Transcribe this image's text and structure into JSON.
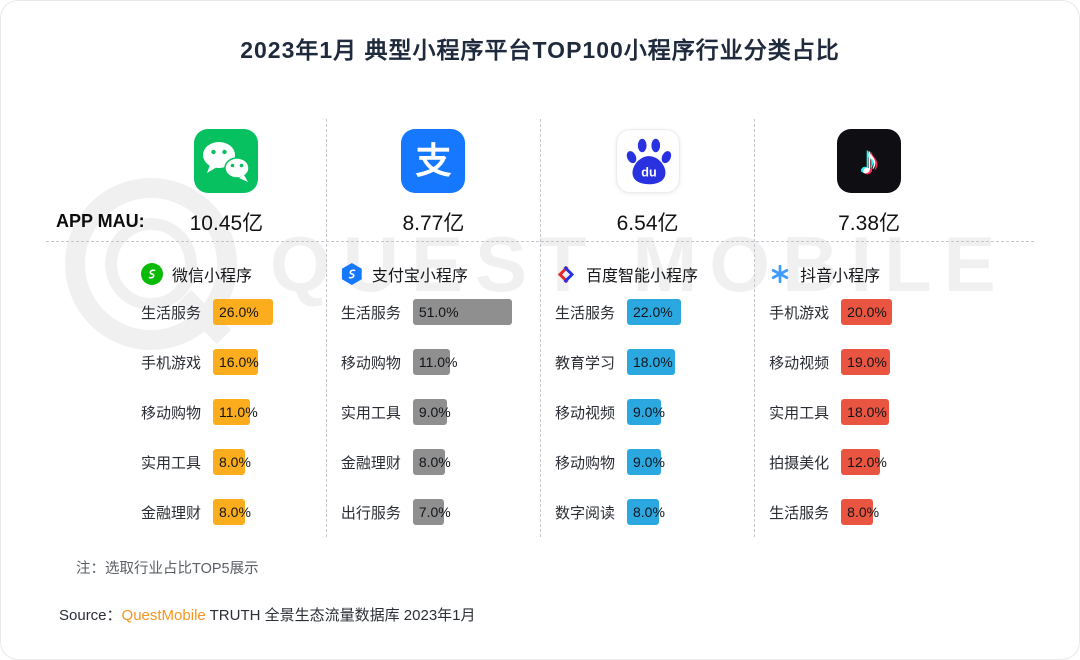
{
  "title": "2023年1月 典型小程序平台TOP100小程序行业分类占比",
  "app_mau_label": "APP MAU:",
  "note": "注：选取行业占比TOP5展示",
  "source_prefix": "Source：",
  "source_brand": "QuestMobile",
  "source_rest": " TRUTH 全景生态流量数据库 2023年1月",
  "watermark_text": "QUEST MOBILE",
  "icons": {
    "alipay_app_glyph": "支",
    "douyin_app_glyph": "♪",
    "baidu_du": "du"
  },
  "chart_data": {
    "type": "bar",
    "orientation": "horizontal",
    "title": "2023年1月 典型小程序平台TOP100小程序行业分类占比",
    "unit": "%",
    "value_range": [
      0,
      51
    ],
    "note": "选取行业占比TOP5展示",
    "platforms": [
      {
        "app": "微信",
        "icon": "wechat-app-icon",
        "mau": "10.45亿",
        "mini_program": "微信小程序",
        "bar_color": "#FBAD1D",
        "categories": [
          "生活服务",
          "手机游戏",
          "移动购物",
          "实用工具",
          "金融理财"
        ],
        "values": [
          26.0,
          16.0,
          11.0,
          8.0,
          8.0
        ]
      },
      {
        "app": "支付宝",
        "icon": "alipay-app-icon",
        "mau": "8.77亿",
        "mini_program": "支付宝小程序",
        "bar_color": "#8F8F8F",
        "categories": [
          "生活服务",
          "移动购物",
          "实用工具",
          "金融理财",
          "出行服务"
        ],
        "values": [
          51.0,
          11.0,
          9.0,
          8.0,
          7.0
        ]
      },
      {
        "app": "百度",
        "icon": "baidu-app-icon",
        "mau": "6.54亿",
        "mini_program": "百度智能小程序",
        "bar_color": "#2CA8E0",
        "categories": [
          "生活服务",
          "教育学习",
          "移动视频",
          "移动购物",
          "数字阅读"
        ],
        "values": [
          22.0,
          18.0,
          9.0,
          9.0,
          8.0
        ]
      },
      {
        "app": "抖音",
        "icon": "douyin-app-icon",
        "mau": "7.38亿",
        "mini_program": "抖音小程序",
        "bar_color": "#E95541",
        "categories": [
          "手机游戏",
          "移动视频",
          "实用工具",
          "拍摄美化",
          "生活服务"
        ],
        "values": [
          20.0,
          19.0,
          18.0,
          12.0,
          8.0
        ]
      }
    ]
  }
}
